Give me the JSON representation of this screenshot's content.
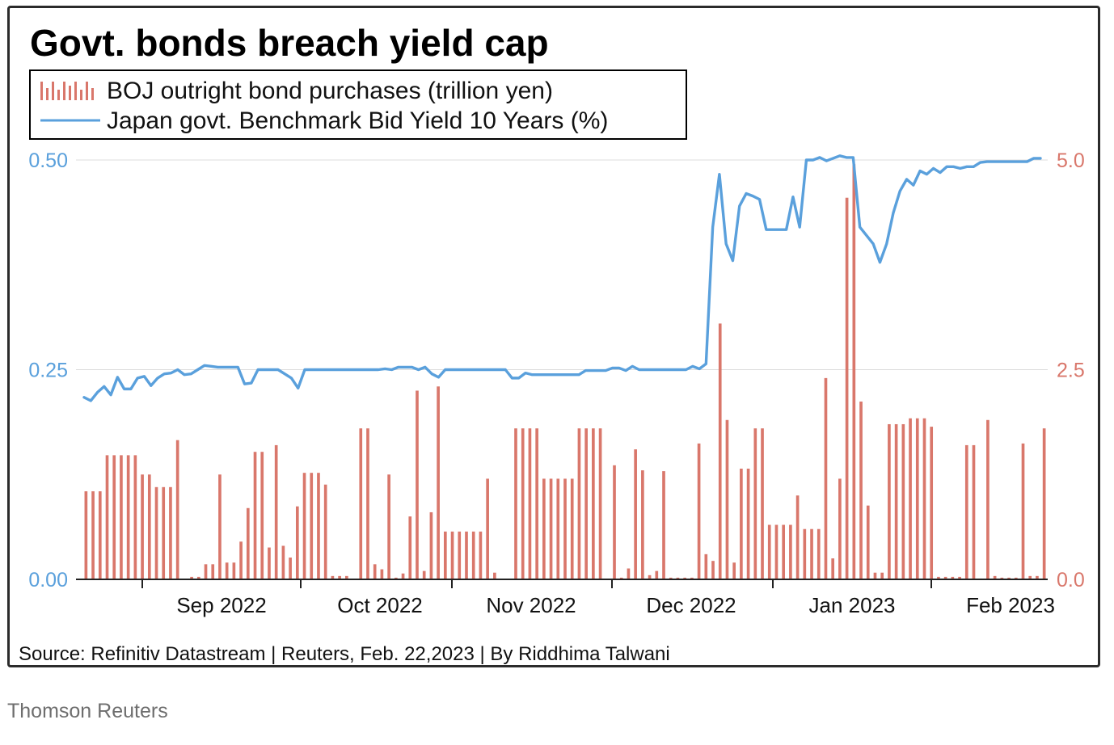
{
  "chart_data": {
    "type": "bar+line",
    "title": "Govt. bonds breach yield cap",
    "series": [
      {
        "name": "BOJ outright bond purchases (trillion yen)",
        "kind": "bar",
        "axis": "right",
        "color": "#d9776b",
        "values": [
          1.05,
          1.05,
          1.05,
          1.48,
          1.48,
          1.48,
          1.48,
          1.48,
          1.25,
          1.25,
          1.1,
          1.1,
          1.1,
          1.66,
          0.0,
          0.03,
          0.03,
          0.18,
          0.18,
          1.25,
          0.2,
          0.2,
          0.45,
          0.85,
          1.52,
          1.52,
          0.38,
          1.6,
          0.4,
          0.26,
          0.87,
          1.27,
          1.27,
          1.27,
          1.13,
          0.04,
          0.04,
          0.04,
          0.0,
          1.8,
          1.8,
          0.18,
          0.12,
          1.25,
          0.02,
          0.07,
          0.75,
          2.25,
          0.1,
          0.8,
          2.3,
          0.57,
          0.57,
          0.57,
          0.57,
          0.57,
          0.57,
          1.2,
          0.08,
          0.0,
          0.0,
          1.8,
          1.8,
          1.8,
          1.8,
          1.2,
          1.2,
          1.2,
          1.2,
          1.2,
          1.8,
          1.8,
          1.8,
          1.8,
          0.0,
          1.36,
          0.02,
          0.13,
          1.55,
          1.3,
          0.05,
          0.1,
          1.29,
          0.02,
          0.02,
          0.02,
          0.02,
          1.62,
          0.3,
          0.22,
          3.05,
          1.9,
          0.2,
          1.32,
          1.32,
          1.8,
          1.8,
          0.65,
          0.65,
          0.65,
          0.65,
          1.0,
          0.6,
          0.6,
          0.6,
          2.4,
          0.25,
          1.2,
          4.55,
          4.95,
          2.12,
          0.88,
          0.08,
          0.08,
          1.85,
          1.85,
          1.85,
          1.92,
          1.92,
          1.92,
          1.82,
          0.03,
          0.03,
          0.03,
          0.03,
          1.6,
          1.6,
          0.01,
          1.9,
          0.04,
          0.02,
          0.02,
          0.02,
          1.62,
          0.04,
          0.04,
          1.8
        ]
      },
      {
        "name": "Japan govt. Benchmark Bid Yield 10 Years (%)",
        "kind": "line",
        "axis": "left",
        "color": "#5aa0dc",
        "values": [
          0.217,
          0.213,
          0.223,
          0.23,
          0.22,
          0.241,
          0.227,
          0.227,
          0.24,
          0.242,
          0.231,
          0.24,
          0.245,
          0.246,
          0.25,
          0.244,
          0.245,
          0.25,
          0.255,
          0.254,
          0.253,
          0.253,
          0.253,
          0.253,
          0.233,
          0.234,
          0.25,
          0.25,
          0.25,
          0.25,
          0.245,
          0.24,
          0.228,
          0.25,
          0.25,
          0.25,
          0.25,
          0.25,
          0.25,
          0.25,
          0.25,
          0.25,
          0.25,
          0.25,
          0.25,
          0.251,
          0.25,
          0.253,
          0.253,
          0.253,
          0.25,
          0.253,
          0.245,
          0.241,
          0.25,
          0.25,
          0.25,
          0.25,
          0.25,
          0.25,
          0.25,
          0.25,
          0.25,
          0.25,
          0.24,
          0.24,
          0.246,
          0.244,
          0.244,
          0.244,
          0.244,
          0.244,
          0.244,
          0.244,
          0.244,
          0.249,
          0.249,
          0.249,
          0.249,
          0.252,
          0.252,
          0.249,
          0.254,
          0.25,
          0.25,
          0.25,
          0.25,
          0.25,
          0.25,
          0.25,
          0.25,
          0.254,
          0.251,
          0.257,
          0.42,
          0.483,
          0.4,
          0.38,
          0.445,
          0.46,
          0.457,
          0.453,
          0.417,
          0.417,
          0.417,
          0.417,
          0.456,
          0.42,
          0.5,
          0.5,
          0.503,
          0.499,
          0.502,
          0.505,
          0.503,
          0.503,
          0.42,
          0.41,
          0.4,
          0.378,
          0.4,
          0.437,
          0.463,
          0.477,
          0.47,
          0.487,
          0.483,
          0.49,
          0.485,
          0.492,
          0.492,
          0.49,
          0.492,
          0.492,
          0.497,
          0.498,
          0.498,
          0.498,
          0.498,
          0.498,
          0.498,
          0.498,
          0.502,
          0.502
        ]
      }
    ],
    "x_axis": {
      "tick_labels": [
        "Sep 2022",
        "Oct 2022",
        "Nov 2022",
        "Dec 2022",
        "Jan 2023",
        "Feb 2023"
      ]
    },
    "y_axis_left": {
      "range": [
        0,
        0.5
      ],
      "tick_labels": [
        "0.00",
        "0.25",
        "0.50"
      ],
      "color": "#5aa0dc"
    },
    "y_axis_right": {
      "range": [
        0,
        5.0
      ],
      "tick_labels": [
        "0.0",
        "2.5",
        "5.0"
      ],
      "color": "#d9776b"
    },
    "grid": "horizontal",
    "legend_placement": "top-left"
  },
  "source_note": "Source: Refinitiv Datastream | Reuters, Feb. 22,2023 | By Riddhima Talwani",
  "credit": "Thomson Reuters"
}
